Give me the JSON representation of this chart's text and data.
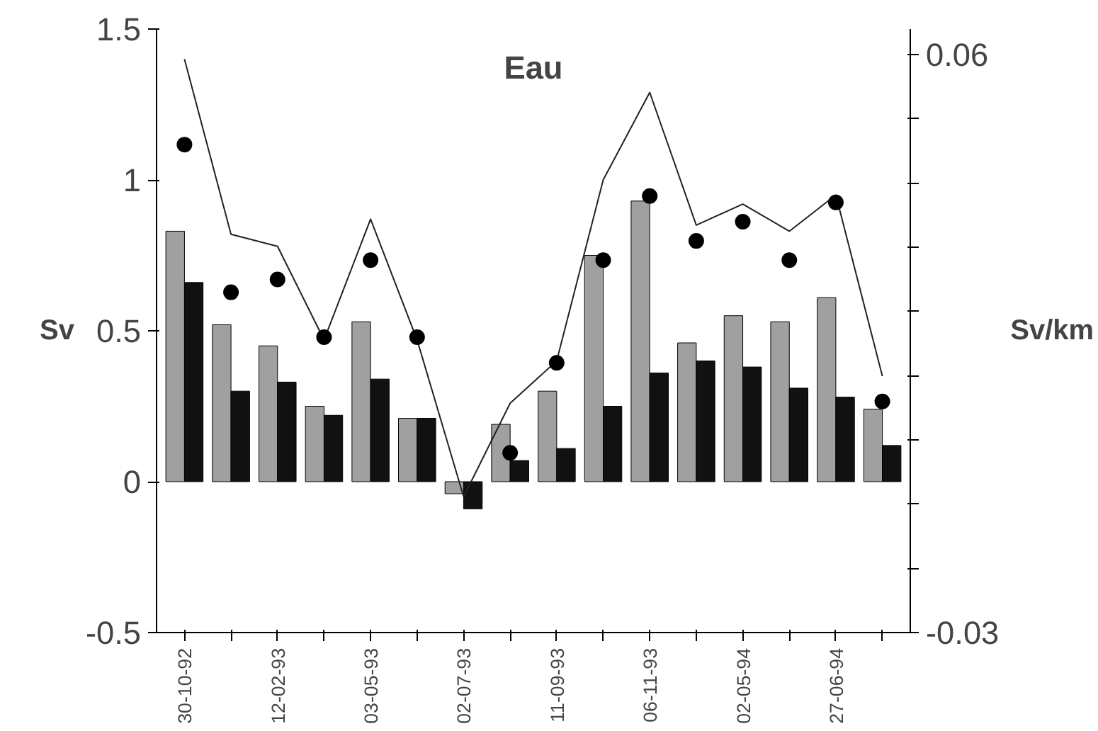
{
  "chart_data": {
    "type": "bar",
    "title": "Eau",
    "ylabel": "Sv",
    "y2label": "Sv/km",
    "categories": [
      "30-10-92",
      null,
      "12-02-93",
      null,
      "03-05-93",
      null,
      "02-07-93",
      null,
      "11-09-93",
      null,
      "06-11-93",
      null,
      "02-05-94",
      null,
      "27-06-94",
      null
    ],
    "series": [
      {
        "color": "#a0a0a0",
        "values": [
          0.83,
          0.52,
          0.45,
          0.25,
          0.53,
          0.21,
          -0.04,
          0.19,
          0.3,
          0.75,
          0.93,
          0.46,
          0.55,
          0.53,
          0.61,
          0.24
        ]
      },
      {
        "color": "#111111",
        "values": [
          0.66,
          0.3,
          0.33,
          0.22,
          0.34,
          0.21,
          -0.09,
          0.07,
          0.11,
          0.25,
          0.36,
          0.4,
          0.38,
          0.31,
          0.28,
          0.12
        ]
      },
      {
        "type": "line",
        "color": "#222222",
        "marker": "none",
        "values": [
          1.4,
          0.82,
          0.78,
          0.47,
          0.87,
          0.47,
          -0.05,
          0.26,
          0.4,
          1.0,
          1.29,
          0.85,
          0.92,
          0.83,
          0.95,
          0.35
        ]
      },
      {
        "type": "scatter",
        "axis": "y2",
        "color": "#000000",
        "marker": "circle",
        "values": [
          0.046,
          0.023,
          0.025,
          0.016,
          0.028,
          0.016,
          null,
          -0.002,
          0.012,
          0.028,
          0.038,
          0.031,
          0.034,
          0.028,
          0.037,
          0.006
        ]
      }
    ],
    "ylim": [
      -0.5,
      1.5
    ],
    "yticks": [
      -0.5,
      0,
      0.5,
      1,
      1.5
    ],
    "y2lim": [
      -0.03,
      0.064
    ],
    "y2ticks": [
      -0.03,
      {
        "value": -0.02,
        "label": null
      },
      {
        "value": -0.01,
        "label": null
      },
      {
        "value": 0,
        "label": null
      },
      {
        "value": 0.01,
        "label": null
      },
      {
        "value": 0.02,
        "label": null
      },
      {
        "value": 0.03,
        "label": null
      },
      {
        "value": 0.04,
        "label": null
      },
      {
        "value": 0.05,
        "label": null
      },
      0.06
    ],
    "grid": false
  }
}
